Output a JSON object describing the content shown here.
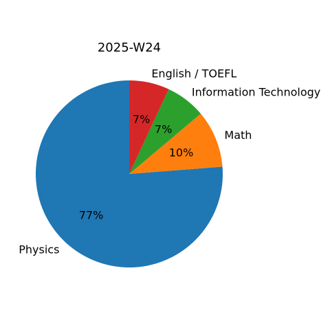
{
  "chart_data": {
    "type": "pie",
    "title": "2025-W24",
    "start_angle_deg": 90,
    "direction": "counterclockwise",
    "slices": [
      {
        "label": "Physics",
        "value": 77,
        "pct_label": "77%",
        "color": "#1f77b4"
      },
      {
        "label": "Math",
        "value": 10,
        "pct_label": "10%",
        "color": "#ff7f0e"
      },
      {
        "label": "Information Technology",
        "value": 7,
        "pct_label": "7%",
        "color": "#2ca02c"
      },
      {
        "label": "English / TOEFL",
        "value": 7,
        "pct_label": "7%",
        "color": "#d62728"
      }
    ]
  }
}
